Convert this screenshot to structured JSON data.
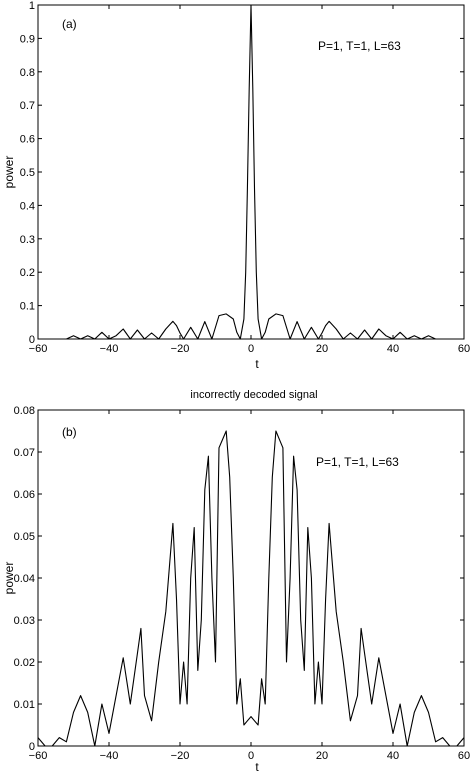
{
  "chart_data": [
    {
      "type": "line",
      "panel_label": "(a)",
      "title": "",
      "annotation": "P=1, T=1, L=63",
      "xlabel": "t",
      "ylabel": "power",
      "xlim": [
        -60,
        60
      ],
      "ylim": [
        0,
        1
      ],
      "xticks": [
        -60,
        -40,
        -20,
        0,
        20,
        40,
        60
      ],
      "yticks": [
        0,
        0.1,
        0.2,
        0.3,
        0.4,
        0.5,
        0.6,
        0.7,
        0.8,
        0.9,
        1
      ],
      "xtick_labels": [
        "−60",
        "−40",
        "−20",
        "0",
        "20",
        "40",
        "60"
      ],
      "ytick_labels": [
        "0",
        "0.1",
        "0.2",
        "0.3",
        "0.4",
        "0.5",
        "0.6",
        "0.7",
        "0.8",
        "0.9",
        "1"
      ],
      "grid": false,
      "series": [
        {
          "x": [
            -60,
            -52,
            -50,
            -48,
            -46,
            -44,
            -42,
            -40,
            -38,
            -36,
            -34,
            -32,
            -30,
            -28,
            -26,
            -24,
            -22,
            -21,
            -20,
            -19,
            -17,
            -15,
            -13,
            -11,
            -9,
            -7,
            -5,
            -4,
            -3,
            -2,
            -1.5,
            -1,
            -0.5,
            0,
            0.5,
            1,
            1.5,
            2,
            3,
            4,
            5,
            7,
            9,
            11,
            13,
            15,
            17,
            19,
            20,
            21,
            22,
            24,
            26,
            28,
            30,
            32,
            34,
            36,
            38,
            40,
            42,
            44,
            46,
            48,
            50,
            52,
            60
          ],
          "y": [
            0,
            0,
            0.01,
            0,
            0.01,
            0,
            0.02,
            0,
            0.01,
            0.03,
            0,
            0.027,
            0,
            0.018,
            0,
            0.03,
            0.053,
            0.04,
            0.018,
            0,
            0.035,
            0,
            0.052,
            0,
            0.07,
            0.075,
            0.06,
            0.02,
            0,
            0.06,
            0.2,
            0.45,
            0.75,
            1,
            0.75,
            0.45,
            0.2,
            0.06,
            0,
            0.02,
            0.06,
            0.075,
            0.07,
            0,
            0.052,
            0,
            0.035,
            0,
            0.018,
            0.04,
            0.053,
            0.03,
            0,
            0.018,
            0,
            0.027,
            0,
            0.03,
            0.01,
            0,
            0.02,
            0,
            0.01,
            0,
            0.01,
            0,
            0
          ]
        }
      ]
    },
    {
      "type": "line",
      "panel_label": "(b)",
      "title": "incorrectly decoded signal",
      "annotation": "P=1, T=1, L=63",
      "xlabel": "t",
      "ylabel": "power",
      "xlim": [
        -60,
        60
      ],
      "ylim": [
        0,
        0.08
      ],
      "xticks": [
        -60,
        -40,
        -20,
        0,
        20,
        40,
        60
      ],
      "yticks": [
        0,
        0.01,
        0.02,
        0.03,
        0.04,
        0.05,
        0.06,
        0.07,
        0.08
      ],
      "xtick_labels": [
        "−60",
        "−40",
        "−20",
        "0",
        "20",
        "40",
        "60"
      ],
      "ytick_labels": [
        "0",
        "0.01",
        "0.02",
        "0.03",
        "0.04",
        "0.05",
        "0.06",
        "0.07",
        "0.08"
      ],
      "grid": false,
      "series": [
        {
          "x": [
            -60,
            -58,
            -56,
            -54,
            -52,
            -50,
            -48,
            -46,
            -44,
            -42,
            -40,
            -38,
            -36,
            -34,
            -32,
            -31,
            -30,
            -28,
            -26,
            -24,
            -22,
            -21,
            -20,
            -19,
            -18,
            -17,
            -16,
            -15,
            -14,
            -13,
            -12,
            -11,
            -10,
            -9,
            -8,
            -7,
            -6,
            -5,
            -4,
            -3,
            -2,
            -1,
            0,
            1,
            2,
            3,
            4,
            5,
            6,
            7,
            8,
            9,
            10,
            11,
            12,
            13,
            14,
            15,
            16,
            17,
            18,
            19,
            20,
            21,
            22,
            24,
            26,
            28,
            30,
            31,
            32,
            34,
            36,
            38,
            40,
            42,
            44,
            46,
            48,
            50,
            52,
            54,
            56,
            58,
            60
          ],
          "y": [
            0.002,
            0,
            0,
            0.002,
            0.001,
            0.008,
            0.012,
            0.008,
            0,
            0.01,
            0.003,
            0.012,
            0.021,
            0.01,
            0.022,
            0.028,
            0.012,
            0.006,
            0.02,
            0.032,
            0.053,
            0.035,
            0.01,
            0.02,
            0.01,
            0.04,
            0.052,
            0.018,
            0.03,
            0.061,
            0.069,
            0.04,
            0.02,
            0.071,
            0.073,
            0.075,
            0.064,
            0.04,
            0.01,
            0.016,
            0.005,
            0.006,
            0.007,
            0.006,
            0.005,
            0.016,
            0.01,
            0.04,
            0.064,
            0.075,
            0.073,
            0.071,
            0.02,
            0.04,
            0.069,
            0.061,
            0.03,
            0.018,
            0.052,
            0.04,
            0.01,
            0.02,
            0.01,
            0.035,
            0.053,
            0.032,
            0.02,
            0.006,
            0.012,
            0.028,
            0.022,
            0.01,
            0.021,
            0.012,
            0.003,
            0.01,
            0,
            0.008,
            0.012,
            0.008,
            0.001,
            0.002,
            0,
            0,
            0.002
          ]
        }
      ]
    }
  ]
}
